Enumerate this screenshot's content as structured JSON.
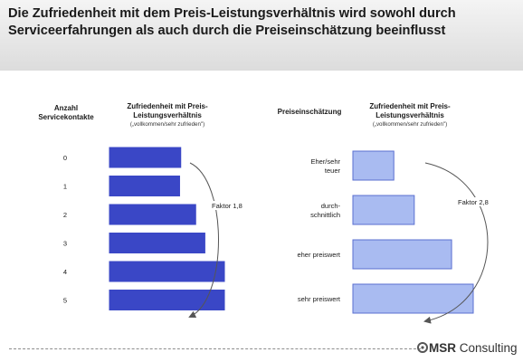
{
  "header": {
    "title": "Die Zufriedenheit mit dem Preis-Leistungsverhältnis wird sowohl durch Serviceerfahrungen als auch durch die Preiseinschätzung beeinflusst"
  },
  "brand": {
    "logo_bold": "MSR",
    "logo_rest": " Consulting"
  },
  "colors": {
    "bar_dark": "#3a47c6",
    "bar_light": "#a9bbf1",
    "bar_light_border": "#5a6fd0"
  },
  "chart_data": [
    {
      "type": "bar",
      "orientation": "horizontal",
      "category_header": [
        "Anzahl",
        "Servicekontakte"
      ],
      "title": [
        "Zufriedenheit mit Preis-",
        "Leistungsverhältnis"
      ],
      "subtitle": "(„vollkommen/sehr zufrieden\")",
      "categories": [
        [
          "0"
        ],
        [
          "1"
        ],
        [
          "2"
        ],
        [
          "3"
        ],
        [
          "4"
        ],
        [
          "5"
        ]
      ],
      "values": [
        0.62,
        0.61,
        0.75,
        0.83,
        1.0,
        1.0
      ],
      "annotation": "Faktor 1,8"
    },
    {
      "type": "bar",
      "orientation": "horizontal",
      "category_header": [
        "Preiseinschätzung"
      ],
      "title": [
        "Zufriedenheit mit Preis-",
        "Leistungsverhältnis"
      ],
      "subtitle": "(„vollkommen/sehr zufrieden\")",
      "categories": [
        [
          "Eher/sehr",
          "teuer"
        ],
        [
          "durch-",
          "schnittlich"
        ],
        [
          "eher preiswert"
        ],
        [
          "sehr preiswert"
        ]
      ],
      "values": [
        0.34,
        0.51,
        0.82,
        1.0
      ],
      "annotation": "Faktor 2,8"
    }
  ]
}
